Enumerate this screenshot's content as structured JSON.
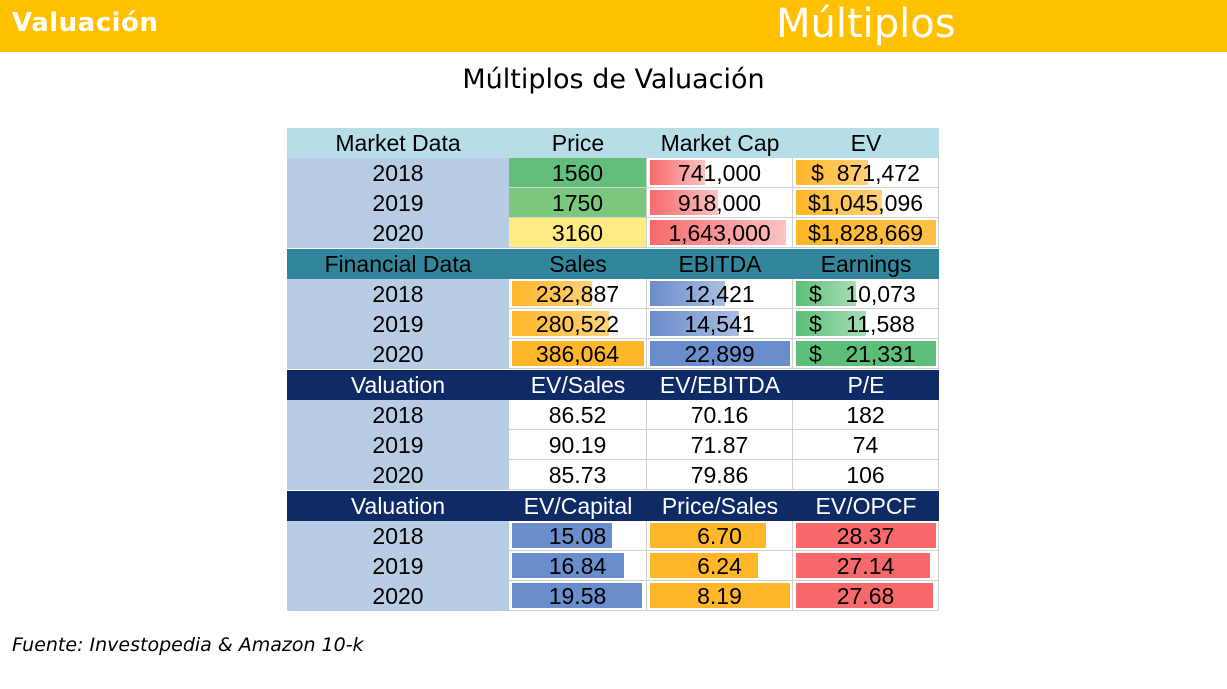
{
  "header": {
    "left_title": "Valuación",
    "right_title": "Múltiplos"
  },
  "slide_title": "Múltiplos de Valuación",
  "footer": "Fuente: Investopedia & Amazon 10-k",
  "colors": {
    "header_bar": "#FFC000",
    "year_col": "#B8CCE4",
    "hdr_market": "#B7DDE8",
    "hdr_financial": "#31869B",
    "hdr_valuation": "#0F2B66",
    "orange": "#FFB628",
    "green": "#5DBE78",
    "blue": "#6A8DCB",
    "red": "#F8696B"
  },
  "market": {
    "headers": [
      "Market Data",
      "Price",
      "Market Cap",
      "EV"
    ],
    "rows": [
      {
        "year": "2018",
        "price": "1560",
        "mcap": "741,000",
        "ev_sym": "$",
        "ev": "871,472"
      },
      {
        "year": "2019",
        "price": "1750",
        "mcap": "918,000",
        "ev_sym": "$1,045,096",
        "ev": ""
      },
      {
        "year": "2020",
        "price": "3160",
        "mcap": "1,643,000",
        "ev_sym": "$1,828,669",
        "ev": ""
      }
    ]
  },
  "financial": {
    "headers": [
      "Financial Data",
      "Sales",
      "EBITDA",
      "Earnings"
    ],
    "rows": [
      {
        "year": "2018",
        "sales": "232,887",
        "ebitda": "12,421",
        "earn_sym": "$",
        "earnings": "10,073"
      },
      {
        "year": "2019",
        "sales": "280,522",
        "ebitda": "14,541",
        "earn_sym": "$",
        "earnings": "11,588"
      },
      {
        "year": "2020",
        "sales": "386,064",
        "ebitda": "22,899",
        "earn_sym": "$",
        "earnings": "21,331"
      }
    ]
  },
  "valuation1": {
    "headers": [
      "Valuation",
      "EV/Sales",
      "EV/EBITDA",
      "P/E"
    ],
    "rows": [
      {
        "year": "2018",
        "a": "86.52",
        "b": "70.16",
        "c": "182"
      },
      {
        "year": "2019",
        "a": "90.19",
        "b": "71.87",
        "c": "74"
      },
      {
        "year": "2020",
        "a": "85.73",
        "b": "79.86",
        "c": "106"
      }
    ]
  },
  "valuation2": {
    "headers": [
      "Valuation",
      "EV/Capital",
      "Price/Sales",
      "EV/OPCF"
    ],
    "rows": [
      {
        "year": "2018",
        "a": "15.08",
        "b": "6.70",
        "c": "28.37"
      },
      {
        "year": "2019",
        "a": "16.84",
        "b": "6.24",
        "c": "27.14"
      },
      {
        "year": "2020",
        "a": "19.58",
        "b": "8.19",
        "c": "27.68"
      }
    ]
  }
}
